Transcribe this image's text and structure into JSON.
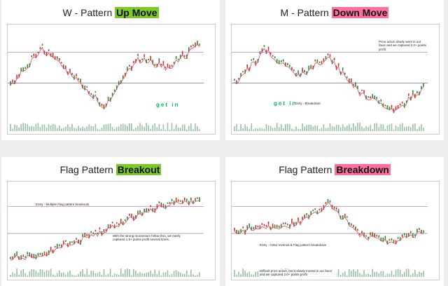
{
  "panels": [
    {
      "title": "W - Pattern",
      "highlight": "Up Move",
      "highlight_color": "#7dc82b",
      "annotations": [
        "get in"
      ]
    },
    {
      "title": "M - Pattern",
      "highlight": "Down Move",
      "highlight_color": "#ff6fa0",
      "annotations": [
        "Price action slowly went in our favor and we captured 2.0+ points profit.",
        "get in",
        "Entry - Breakdown"
      ]
    },
    {
      "title": "Flag Pattern",
      "highlight": "Breakout",
      "highlight_color": "#7dc82b",
      "annotations": [
        "Entry - Multiple Flag pattern breakouts",
        "With the strong momentum follow thru, we easily captured 1.5+ points profit several times."
      ]
    },
    {
      "title": "Flag Pattern",
      "highlight": "Breakdown",
      "highlight_color": "#ff6fa0",
      "annotations": [
        "Entry - 3 Bar reversal & Flag pattern breakdown",
        "Difficult price action, but it slowly moved in our favor and we captured 2.0+ points profit"
      ]
    }
  ]
}
